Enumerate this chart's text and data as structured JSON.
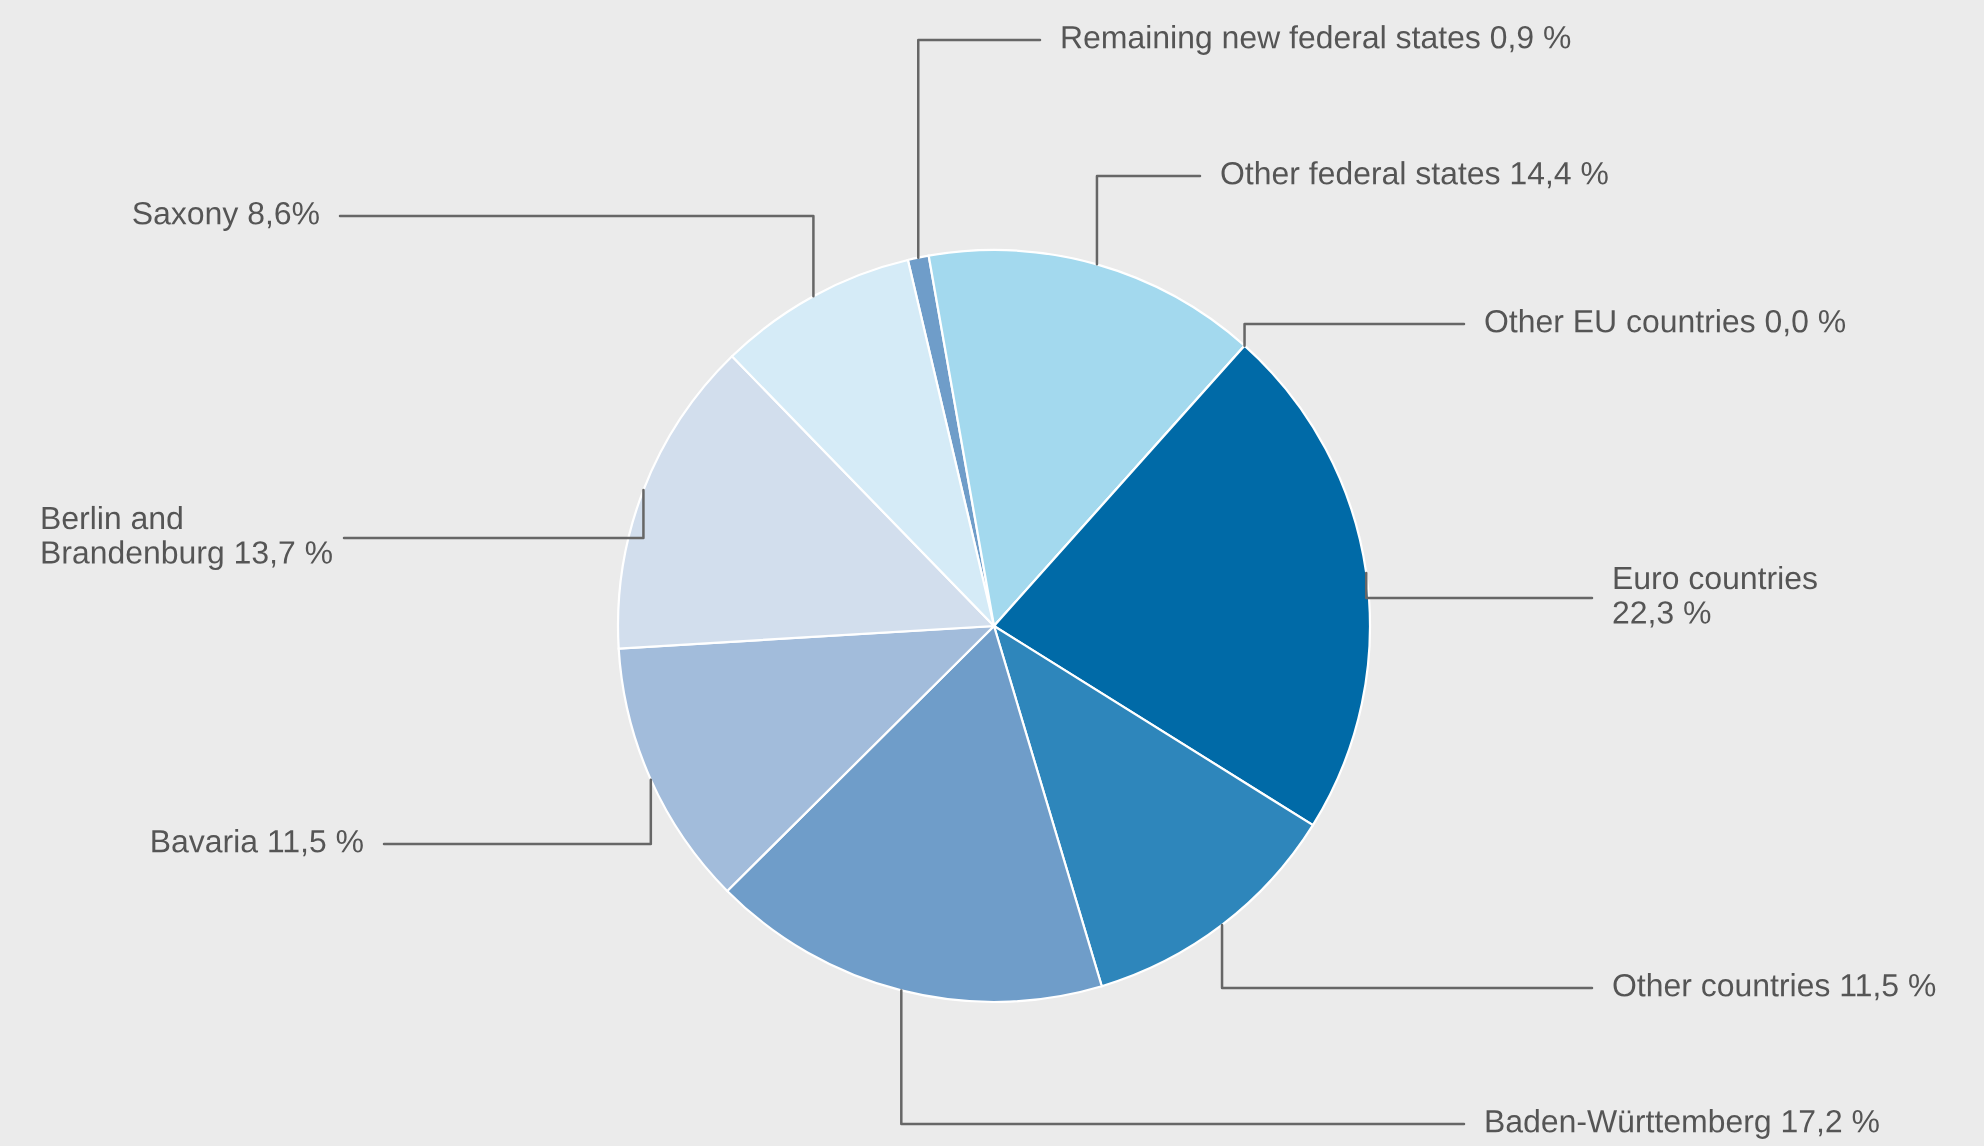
{
  "chart_data": {
    "type": "pie",
    "categories": [
      "Remaining new federal states",
      "Other federal states",
      "Other EU countries",
      "Euro countries",
      "Other countries",
      "Baden-Württemberg",
      "Bavaria",
      "Berlin and\nBrandenburg",
      "Saxony"
    ],
    "values": [
      0.9,
      14.4,
      0.0,
      22.3,
      11.5,
      17.2,
      11.5,
      13.7,
      8.6
    ],
    "value_labels": [
      "0,9 %",
      "14,4 %",
      "0,0 %",
      "22,3 %",
      "11,5 %",
      "17,2 %",
      "11,5 %",
      "13,7 %",
      "8,6%"
    ],
    "colors": [
      "#6f9dc9",
      "#a3d9ee",
      "#0d74b0",
      "#006aa7",
      "#2e86bb",
      "#6f9dc9",
      "#a2bcdb",
      "#d2deed",
      "#d5ebf7"
    ],
    "legend": false
  }
}
